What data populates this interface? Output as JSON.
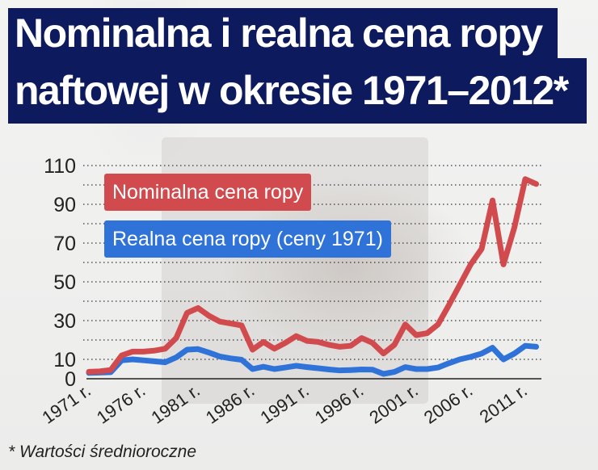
{
  "title": {
    "line1": "Nominalna i realna cena ropy",
    "line2": "naftowej w okresie 1971–2012*"
  },
  "footnote": "* Wartości średnioroczne",
  "colors": {
    "title_bg": "#0d1a5e",
    "nominal": "#d14b4e",
    "real": "#2f72d8"
  },
  "chart_data": {
    "type": "line",
    "title": "Nominalna i realna cena ropy naftowej w okresie 1971–2012*",
    "xlabel": "",
    "ylabel": "",
    "ylim": [
      0,
      110
    ],
    "yticks": [
      0,
      10,
      30,
      50,
      70,
      90,
      110
    ],
    "grid": "dotted horizontal every 10",
    "legend_position": "top-left inside",
    "xtick_labels": [
      "1971 r.",
      "1976 r.",
      "1981 r.",
      "1986 r.",
      "1991 r.",
      "1996 r.",
      "2001 r.",
      "2006 r.",
      "2011 r."
    ],
    "x": [
      1971,
      1972,
      1973,
      1974,
      1975,
      1976,
      1977,
      1978,
      1979,
      1980,
      1981,
      1982,
      1983,
      1984,
      1985,
      1986,
      1987,
      1988,
      1989,
      1990,
      1991,
      1992,
      1993,
      1994,
      1995,
      1996,
      1997,
      1998,
      1999,
      2000,
      2001,
      2002,
      2003,
      2004,
      2005,
      2006,
      2007,
      2008,
      2009,
      2010,
      2011,
      2012
    ],
    "series": [
      {
        "name": "Nominalna cena ropy",
        "color": "#d14b4e",
        "values": [
          3.6,
          3.8,
          4.5,
          12,
          14,
          14,
          14.5,
          15.5,
          21,
          34,
          36.5,
          32.5,
          29.5,
          28.5,
          27.5,
          15,
          19,
          15.5,
          18.5,
          22,
          19.5,
          19,
          17.5,
          16.5,
          17,
          21,
          18.5,
          13,
          17.5,
          28,
          22.5,
          23.5,
          28,
          38,
          48.5,
          59,
          67,
          92,
          59,
          78,
          103,
          100.5
        ]
      },
      {
        "name": "Realna cena ropy (ceny 1971)",
        "color": "#2f72d8",
        "values": [
          3,
          3.2,
          3.4,
          9.5,
          10,
          9.5,
          9,
          8.5,
          11,
          15,
          15.3,
          13.5,
          11.5,
          10.5,
          9.8,
          5,
          6.2,
          5,
          5.8,
          6.7,
          6,
          5.4,
          4.8,
          4.3,
          4.5,
          4.8,
          4.7,
          2.5,
          3.5,
          6,
          5,
          5,
          5.8,
          8,
          10,
          11.3,
          13,
          16,
          10,
          13,
          17,
          16.5
        ]
      }
    ]
  }
}
